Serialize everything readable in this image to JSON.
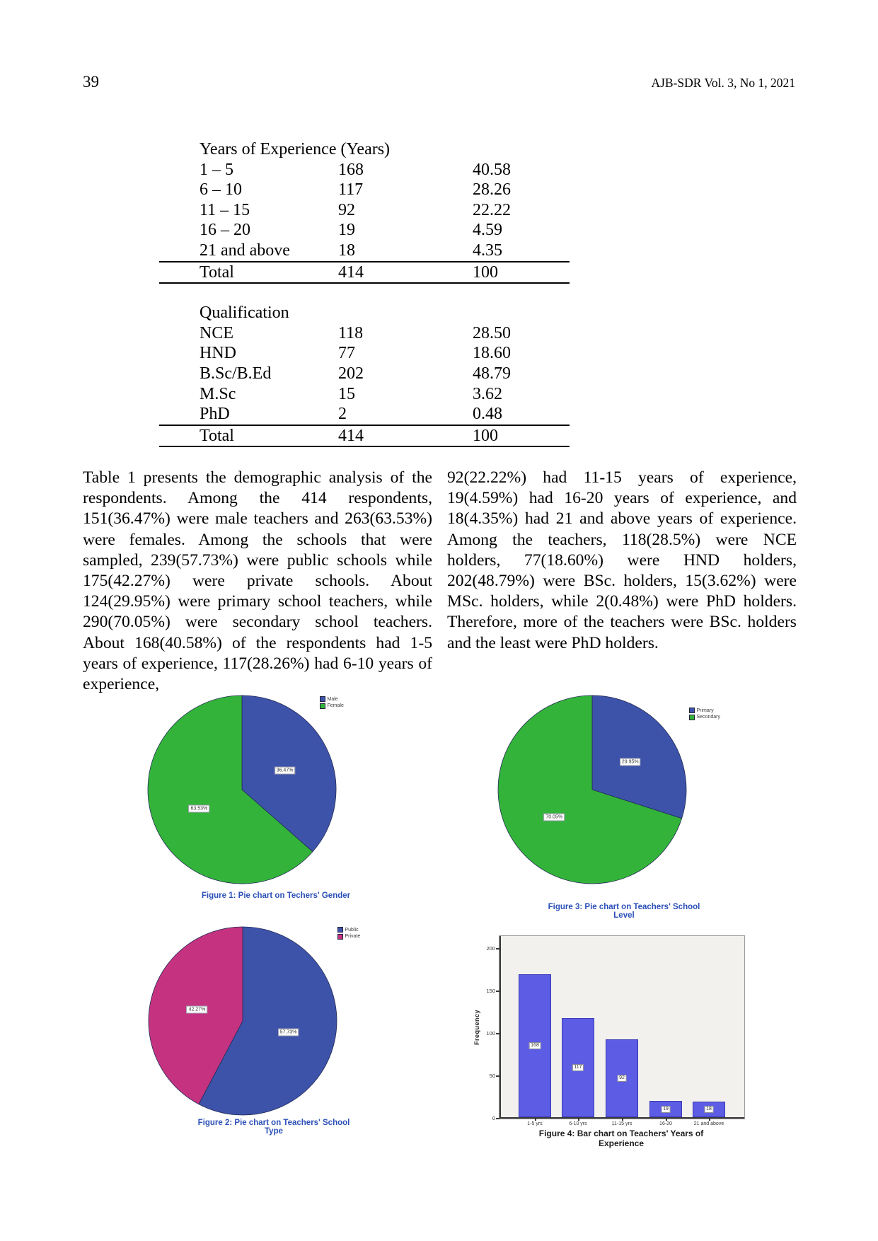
{
  "page": {
    "number": "39",
    "journal": "AJB-SDR Vol. 3, No 1, 2021"
  },
  "table1": {
    "sections": [
      {
        "header": "Years of Experience (Years)",
        "rows": [
          {
            "label": "1 – 5",
            "count": "168",
            "percent": "40.58"
          },
          {
            "label": "6 – 10",
            "count": "117",
            "percent": "28.26"
          },
          {
            "label": "11 – 15",
            "count": "92",
            "percent": "22.22"
          },
          {
            "label": "16 – 20",
            "count": "19",
            "percent": "4.59"
          },
          {
            "label": "21 and above",
            "count": "18",
            "percent": "4.35"
          }
        ],
        "total": {
          "label": "Total",
          "count": "414",
          "percent": "100"
        }
      },
      {
        "header": "Qualification",
        "rows": [
          {
            "label": "NCE",
            "count": "118",
            "percent": "28.50"
          },
          {
            "label": "HND",
            "count": "77",
            "percent": "18.60"
          },
          {
            "label": "B.Sc/B.Ed",
            "count": "202",
            "percent": "48.79"
          },
          {
            "label": "M.Sc",
            "count": "15",
            "percent": "3.62"
          },
          {
            "label": "PhD",
            "count": "2",
            "percent": "0.48"
          }
        ],
        "total": {
          "label": "Total",
          "count": "414",
          "percent": "100"
        }
      }
    ]
  },
  "body": {
    "left_column": "Table 1 presents the demographic analysis of the respondents. Among the 414 respondents, 151(36.47%) were male teachers and 263(63.53%) were females. Among the schools that were sampled, 239(57.73%) were public schools while 175(42.27%) were private schools. About 124(29.95%) were primary school teachers, while 290(70.05%) were secondary school teachers. About 168(40.58%) of the respondents had 1-5 years of experience, 117(28.26%) had 6-10 years of experience,",
    "right_column": "92(22.22%) had 11-15 years of experience, 19(4.59%) had 16-20 years of experience, and 18(4.35%) had 21 and above years of experience. Among the teachers, 118(28.5%) were NCE holders, 77(18.60%) were HND holders, 202(48.79%) were BSc. holders, 15(3.62%) were MSc. holders, while 2(0.48%) were PhD holders. Therefore, more of the teachers were BSc. holders and the least were PhD holders."
  },
  "chart_data": [
    {
      "id": "figure1",
      "type": "pie",
      "caption": "Figure 1: Pie chart on Techers' Gender",
      "legend_position": "top-right",
      "slices": [
        {
          "label": "Male",
          "value": 36.47,
          "display": "36.47%",
          "color": "#3d53aa"
        },
        {
          "label": "Female",
          "value": 63.53,
          "display": "63.53%",
          "color": "#33b33a"
        }
      ]
    },
    {
      "id": "figure3",
      "type": "pie",
      "caption": "Figure 3: Pie chart on Teachers' School Level",
      "legend_position": "top-right",
      "slices": [
        {
          "label": "Primary",
          "value": 29.95,
          "display": "29.95%",
          "color": "#3d53aa"
        },
        {
          "label": "Secondary",
          "value": 70.05,
          "display": "70.05%",
          "color": "#33b33a"
        }
      ]
    },
    {
      "id": "figure2",
      "type": "pie",
      "caption": "Figure 2: Pie chart on Teachers' School Type",
      "legend_position": "top-right",
      "slices": [
        {
          "label": "Public",
          "value": 57.73,
          "display": "57.73%",
          "color": "#3d53aa"
        },
        {
          "label": "Private",
          "value": 42.27,
          "display": "42.27%",
          "color": "#c53380"
        }
      ]
    },
    {
      "id": "figure4",
      "type": "bar",
      "caption": "Figure 4: Bar chart on Teachers' Years of Experience",
      "ylabel": "Frequency",
      "ylim": [
        0,
        210
      ],
      "yticks": [
        0,
        50,
        100,
        150,
        200
      ],
      "categories": [
        "1-5 yrs",
        "6-10 yrs",
        "11-15 yrs",
        "16-20",
        "21 and above"
      ],
      "values": [
        168,
        117,
        92,
        19,
        18
      ],
      "bar_color": "#5c5ce4",
      "plot_bg": "#f2f1ee",
      "grid": false,
      "legend_position": "none"
    }
  ]
}
